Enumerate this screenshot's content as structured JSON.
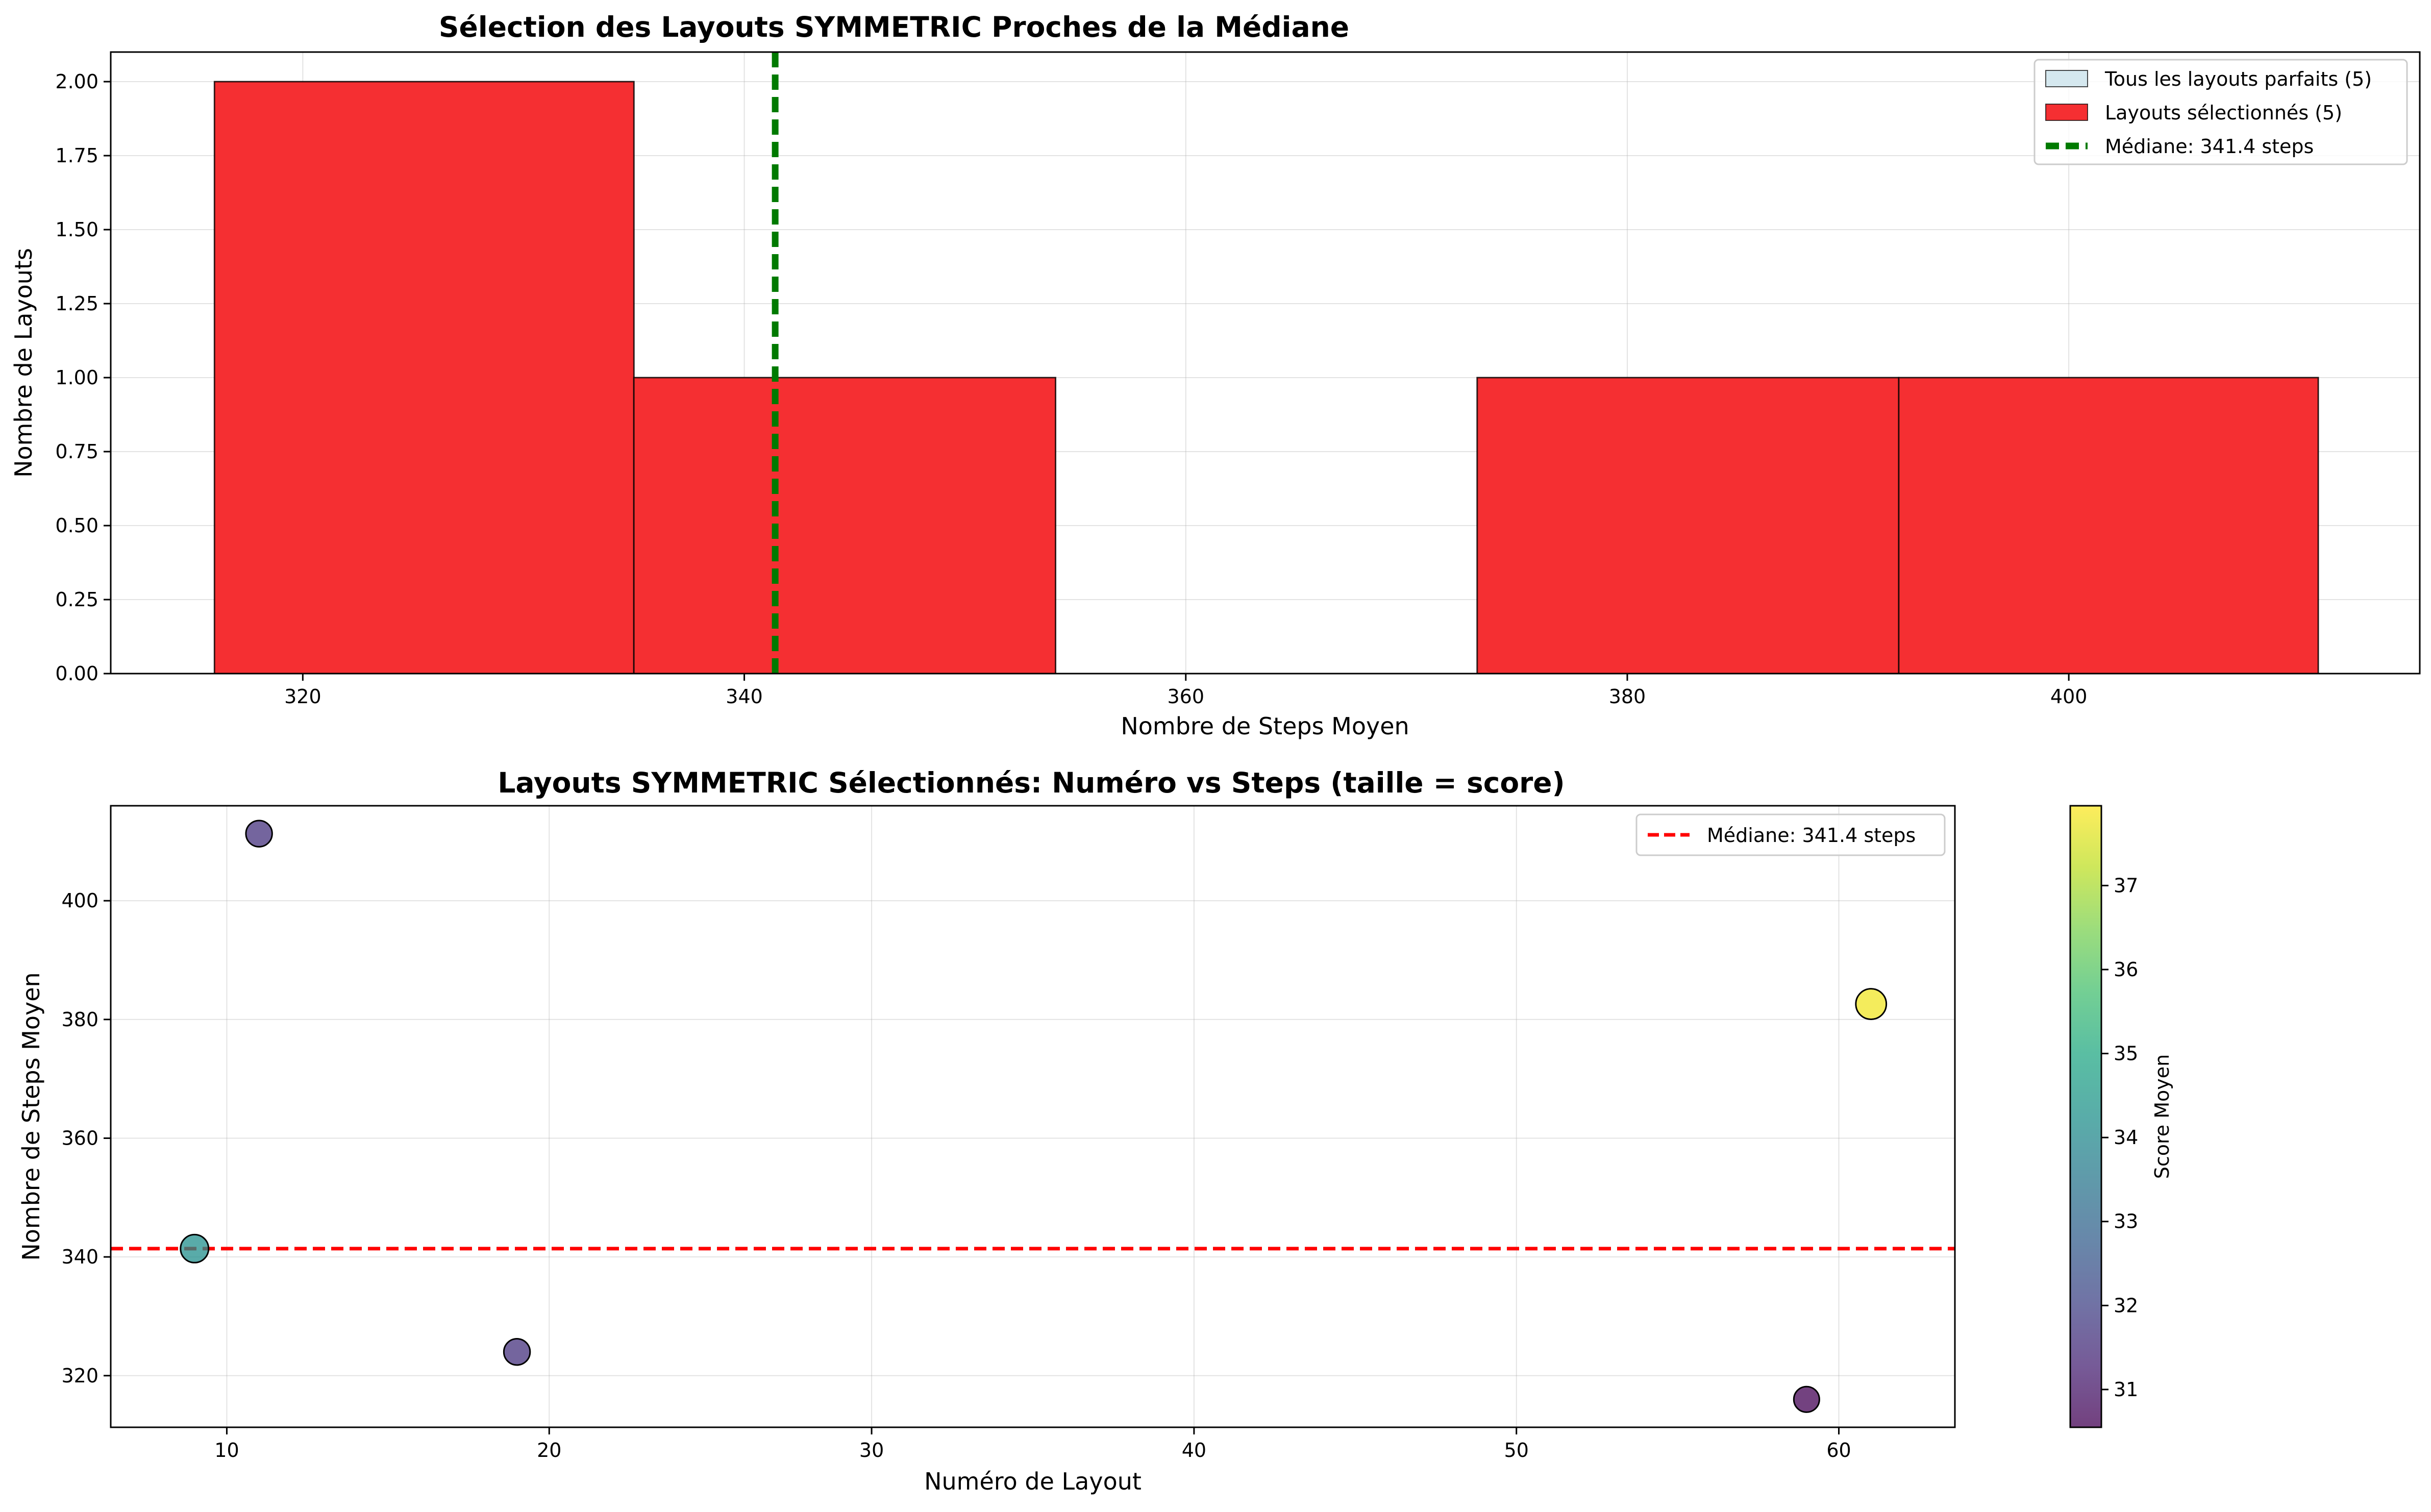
{
  "chart_data": [
    {
      "type": "bar",
      "title": "Sélection des Layouts SYMMETRIC Proches de la Médiane",
      "xlabel": "Nombre de Steps Moyen",
      "ylabel": "Nombre de Layouts",
      "xlim": [
        311.3,
        415.9
      ],
      "ylim": [
        0,
        2.1
      ],
      "xticks": [
        "320",
        "340",
        "360",
        "380",
        "400"
      ],
      "xtick_values": [
        320,
        340,
        360,
        380,
        400
      ],
      "yticks": [
        "0.00",
        "0.25",
        "0.50",
        "0.75",
        "1.00",
        "1.25",
        "1.50",
        "1.75",
        "2.00"
      ],
      "ytick_values": [
        0,
        0.25,
        0.5,
        0.75,
        1.0,
        1.25,
        1.5,
        1.75,
        2.0
      ],
      "bins": [
        {
          "x0": 316.0,
          "x1": 335.0,
          "count": 2
        },
        {
          "x0": 335.0,
          "x1": 354.1,
          "count": 1
        },
        {
          "x0": 354.1,
          "x1": 373.2,
          "count": 0
        },
        {
          "x0": 373.2,
          "x1": 392.3,
          "count": 1
        },
        {
          "x0": 392.3,
          "x1": 411.3,
          "count": 1
        }
      ],
      "median": 341.4,
      "legend_position": "top-right",
      "legend": [
        {
          "label": "Tous les layouts parfaits (5)",
          "kind": "patch",
          "color": "#d5e8ef"
        },
        {
          "label": "Layouts sélectionnés (5)",
          "kind": "patch",
          "color": "#f52f32"
        },
        {
          "label": "Médiane: 341.4 steps",
          "kind": "dashed-line",
          "color": "#007a00"
        }
      ],
      "grid": true
    },
    {
      "type": "scatter",
      "title": "Layouts SYMMETRIC Sélectionnés: Numéro vs Steps (taille = score)",
      "xlabel": "Numéro de Layout",
      "ylabel": "Nombre de Steps Moyen",
      "xlim": [
        6.4,
        63.6
      ],
      "ylim": [
        311.3,
        416.0
      ],
      "xticks": [
        "10",
        "20",
        "30",
        "40",
        "50",
        "60"
      ],
      "xtick_values": [
        10,
        20,
        30,
        40,
        50,
        60
      ],
      "yticks": [
        "320",
        "340",
        "360",
        "380",
        "400"
      ],
      "ytick_values": [
        320,
        340,
        360,
        380,
        400
      ],
      "points": [
        {
          "x": 9,
          "y": 341.4,
          "score": 34.2
        },
        {
          "x": 11,
          "y": 411.3,
          "score": 31.6
        },
        {
          "x": 19,
          "y": 324.0,
          "score": 31.6
        },
        {
          "x": 59,
          "y": 316.0,
          "score": 30.6
        },
        {
          "x": 61,
          "y": 382.6,
          "score": 37.8
        }
      ],
      "median": 341.4,
      "legend_position": "top-right",
      "legend": [
        {
          "label": "Médiane: 341.4 steps",
          "kind": "dashed-line",
          "color": "#ff0000"
        }
      ],
      "colorbar": {
        "label": "Score Moyen",
        "min": 30.55,
        "max": 37.95,
        "ticks": [
          "31",
          "32",
          "33",
          "34",
          "35",
          "36",
          "37"
        ],
        "tick_values": [
          31,
          32,
          33,
          34,
          35,
          36,
          37
        ],
        "colormap": "viridis"
      },
      "grid": true
    }
  ]
}
